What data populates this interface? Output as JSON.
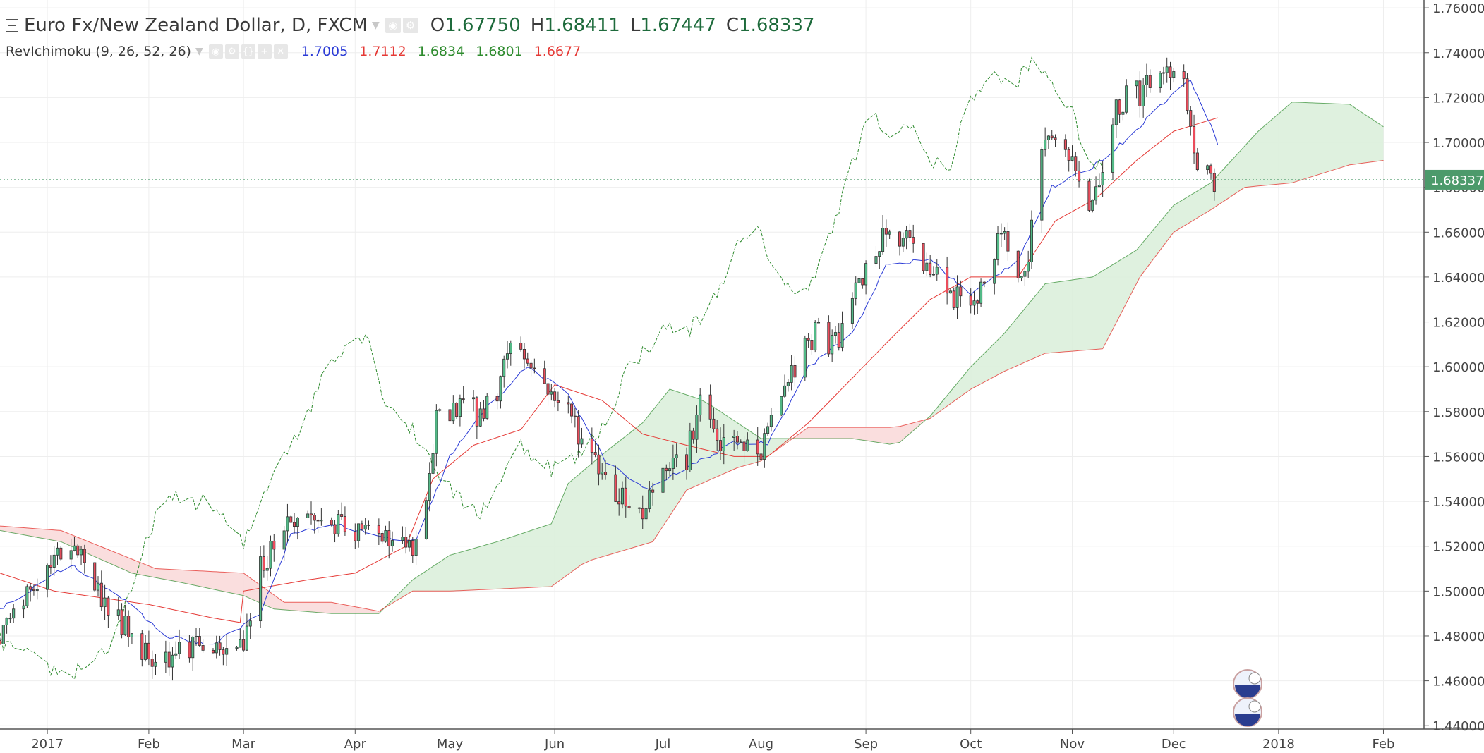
{
  "header": {
    "symbol_title": "Euro Fx/New Zealand Dollar, D, FXCM",
    "ohlc": [
      {
        "label": "O",
        "value": "1.67750"
      },
      {
        "label": "H",
        "value": "1.68411"
      },
      {
        "label": "L",
        "value": "1.67447"
      },
      {
        "label": "C",
        "value": "1.68337"
      }
    ]
  },
  "indicator": {
    "name": "RevIchimoku (9, 26, 52, 26)",
    "values": [
      {
        "value": "1.7005",
        "color": "#2b3bd6"
      },
      {
        "value": "1.7112",
        "color": "#e53935"
      },
      {
        "value": "1.6834",
        "color": "#2e8b2e"
      },
      {
        "value": "1.6801",
        "color": "#2e8b2e"
      },
      {
        "value": "1.6677",
        "color": "#e53935"
      }
    ]
  },
  "colors": {
    "up_candle": "#53b987",
    "down_candle": "#eb4d5c",
    "tenkan": "#2b3bd6",
    "kijun": "#e53935",
    "chikou": "#2e8b2e",
    "cloud_bull": "#d9eed9",
    "cloud_bear": "#f9d8d8",
    "last_price_bg": "#4c9a6b"
  },
  "chart_data": {
    "type": "candlestick",
    "y_ticks": [
      "1.76000",
      "1.74000",
      "1.72000",
      "1.70000",
      "1.68000",
      "1.66000",
      "1.64000",
      "1.62000",
      "1.60000",
      "1.58000",
      "1.56000",
      "1.54000",
      "1.52000",
      "1.50000",
      "1.48000",
      "1.46000",
      "1.44000"
    ],
    "ylim": [
      1.4385,
      1.7635
    ],
    "x_axis": {
      "start": "2016-12-19",
      "end": "2018-02-13",
      "ticks": [
        {
          "label": "2017",
          "date": "2017-01-02"
        },
        {
          "label": "Feb",
          "date": "2017-02-01"
        },
        {
          "label": "Mar",
          "date": "2017-03-01"
        },
        {
          "label": "Apr",
          "date": "2017-04-03"
        },
        {
          "label": "May",
          "date": "2017-05-01"
        },
        {
          "label": "Jun",
          "date": "2017-06-01"
        },
        {
          "label": "Jul",
          "date": "2017-07-03"
        },
        {
          "label": "Aug",
          "date": "2017-08-01"
        },
        {
          "label": "Sep",
          "date": "2017-09-01"
        },
        {
          "label": "Oct",
          "date": "2017-10-02"
        },
        {
          "label": "Nov",
          "date": "2017-11-01"
        },
        {
          "label": "Dec",
          "date": "2017-12-01"
        },
        {
          "label": "2018",
          "date": "2018-01-01"
        },
        {
          "label": "Feb",
          "date": "2018-02-01"
        }
      ]
    },
    "last_price": {
      "label": "1.68337",
      "value": 1.68337
    },
    "price_anchors": [
      [
        "2016-12-19",
        1.478
      ],
      [
        "2016-12-28",
        1.5
      ],
      [
        "2017-01-05",
        1.515
      ],
      [
        "2017-01-10",
        1.522
      ],
      [
        "2017-01-17",
        1.5
      ],
      [
        "2017-01-24",
        1.485
      ],
      [
        "2017-02-01",
        1.472
      ],
      [
        "2017-02-08",
        1.472
      ],
      [
        "2017-02-15",
        1.478
      ],
      [
        "2017-02-22",
        1.47
      ],
      [
        "2017-03-01",
        1.478
      ],
      [
        "2017-03-06",
        1.51
      ],
      [
        "2017-03-13",
        1.53
      ],
      [
        "2017-03-20",
        1.533
      ],
      [
        "2017-03-27",
        1.53
      ],
      [
        "2017-04-03",
        1.525
      ],
      [
        "2017-04-10",
        1.528
      ],
      [
        "2017-04-17",
        1.52
      ],
      [
        "2017-04-21",
        1.518
      ],
      [
        "2017-04-25",
        1.55
      ],
      [
        "2017-04-27",
        1.575
      ],
      [
        "2017-05-04",
        1.585
      ],
      [
        "2017-05-10",
        1.578
      ],
      [
        "2017-05-15",
        1.59
      ],
      [
        "2017-05-19",
        1.612
      ],
      [
        "2017-05-23",
        1.605
      ],
      [
        "2017-05-30",
        1.59
      ],
      [
        "2017-06-05",
        1.58
      ],
      [
        "2017-06-12",
        1.56
      ],
      [
        "2017-06-19",
        1.545
      ],
      [
        "2017-06-27",
        1.535
      ],
      [
        "2017-07-03",
        1.558
      ],
      [
        "2017-07-10",
        1.56
      ],
      [
        "2017-07-14",
        1.585
      ],
      [
        "2017-07-19",
        1.565
      ],
      [
        "2017-07-26",
        1.565
      ],
      [
        "2017-08-01",
        1.562
      ],
      [
        "2017-08-04",
        1.578
      ],
      [
        "2017-08-10",
        1.598
      ],
      [
        "2017-08-17",
        1.615
      ],
      [
        "2017-08-23",
        1.61
      ],
      [
        "2017-08-29",
        1.632
      ],
      [
        "2017-09-04",
        1.652
      ],
      [
        "2017-09-08",
        1.66
      ],
      [
        "2017-09-14",
        1.655
      ],
      [
        "2017-09-20",
        1.645
      ],
      [
        "2017-09-26",
        1.63
      ],
      [
        "2017-09-29",
        1.63
      ],
      [
        "2017-10-05",
        1.632
      ],
      [
        "2017-10-11",
        1.66
      ],
      [
        "2017-10-16",
        1.645
      ],
      [
        "2017-10-19",
        1.648
      ],
      [
        "2017-10-23",
        1.7
      ],
      [
        "2017-10-27",
        1.7
      ],
      [
        "2017-11-02",
        1.69
      ],
      [
        "2017-11-07",
        1.67
      ],
      [
        "2017-11-13",
        1.71
      ],
      [
        "2017-11-17",
        1.722
      ],
      [
        "2017-11-21",
        1.722
      ],
      [
        "2017-11-27",
        1.73
      ],
      [
        "2017-12-01",
        1.735
      ],
      [
        "2017-12-05",
        1.72
      ],
      [
        "2017-12-08",
        1.69
      ],
      [
        "2017-12-13",
        1.682
      ]
    ],
    "tenkan_anchors": [
      [
        "2016-12-19",
        1.492
      ],
      [
        "2017-01-09",
        1.512
      ],
      [
        "2017-01-23",
        1.498
      ],
      [
        "2017-02-06",
        1.48
      ],
      [
        "2017-02-20",
        1.476
      ],
      [
        "2017-03-06",
        1.49
      ],
      [
        "2017-03-15",
        1.525
      ],
      [
        "2017-03-28",
        1.53
      ],
      [
        "2017-04-10",
        1.524
      ],
      [
        "2017-04-21",
        1.522
      ],
      [
        "2017-05-01",
        1.56
      ],
      [
        "2017-05-12",
        1.582
      ],
      [
        "2017-05-24",
        1.6
      ],
      [
        "2017-06-05",
        1.588
      ],
      [
        "2017-06-16",
        1.558
      ],
      [
        "2017-06-28",
        1.545
      ],
      [
        "2017-07-10",
        1.555
      ],
      [
        "2017-07-24",
        1.566
      ],
      [
        "2017-08-03",
        1.566
      ],
      [
        "2017-08-15",
        1.6
      ],
      [
        "2017-08-28",
        1.615
      ],
      [
        "2017-09-07",
        1.645
      ],
      [
        "2017-09-20",
        1.648
      ],
      [
        "2017-10-02",
        1.632
      ],
      [
        "2017-10-16",
        1.648
      ],
      [
        "2017-10-26",
        1.68
      ],
      [
        "2017-11-06",
        1.688
      ],
      [
        "2017-11-16",
        1.7
      ],
      [
        "2017-11-28",
        1.718
      ],
      [
        "2017-12-06",
        1.728
      ],
      [
        "2017-12-14",
        1.7
      ]
    ],
    "kijun_anchors": [
      [
        "2016-12-19",
        1.508
      ],
      [
        "2017-01-04",
        1.5
      ],
      [
        "2017-02-01",
        1.494
      ],
      [
        "2017-02-20",
        1.488
      ],
      [
        "2017-02-28",
        1.486
      ],
      [
        "2017-03-01",
        1.5
      ],
      [
        "2017-03-20",
        1.505
      ],
      [
        "2017-04-03",
        1.508
      ],
      [
        "2017-04-18",
        1.52
      ],
      [
        "2017-04-26",
        1.55
      ],
      [
        "2017-05-08",
        1.565
      ],
      [
        "2017-05-22",
        1.572
      ],
      [
        "2017-06-01",
        1.592
      ],
      [
        "2017-06-15",
        1.585
      ],
      [
        "2017-06-27",
        1.57
      ],
      [
        "2017-07-10",
        1.565
      ],
      [
        "2017-07-24",
        1.56
      ],
      [
        "2017-08-03",
        1.56
      ],
      [
        "2017-08-15",
        1.575
      ],
      [
        "2017-08-28",
        1.595
      ],
      [
        "2017-09-08",
        1.612
      ],
      [
        "2017-09-20",
        1.63
      ],
      [
        "2017-10-02",
        1.64
      ],
      [
        "2017-10-16",
        1.64
      ],
      [
        "2017-10-27",
        1.665
      ],
      [
        "2017-11-08",
        1.675
      ],
      [
        "2017-11-20",
        1.692
      ],
      [
        "2017-12-01",
        1.705
      ],
      [
        "2017-12-14",
        1.711
      ]
    ],
    "chikou_anchors": [
      [
        "2016-12-19",
        1.478
      ],
      [
        "2016-12-28",
        1.47
      ],
      [
        "2017-01-08",
        1.462
      ],
      [
        "2017-01-20",
        1.475
      ],
      [
        "2017-01-26",
        1.495
      ],
      [
        "2017-02-03",
        1.535
      ],
      [
        "2017-02-10",
        1.542
      ],
      [
        "2017-02-20",
        1.538
      ],
      [
        "2017-03-01",
        1.52
      ],
      [
        "2017-03-10",
        1.555
      ],
      [
        "2017-03-20",
        1.578
      ],
      [
        "2017-03-25",
        1.6
      ],
      [
        "2017-03-31",
        1.61
      ],
      [
        "2017-04-06",
        1.615
      ],
      [
        "2017-04-12",
        1.585
      ],
      [
        "2017-04-18",
        1.575
      ],
      [
        "2017-04-23",
        1.565
      ],
      [
        "2017-04-29",
        1.55
      ],
      [
        "2017-05-04",
        1.54
      ],
      [
        "2017-05-10",
        1.535
      ],
      [
        "2017-05-16",
        1.55
      ],
      [
        "2017-05-22",
        1.565
      ],
      [
        "2017-05-31",
        1.555
      ],
      [
        "2017-06-08",
        1.56
      ],
      [
        "2017-06-16",
        1.575
      ],
      [
        "2017-06-22",
        1.598
      ],
      [
        "2017-06-29",
        1.61
      ],
      [
        "2017-07-05",
        1.618
      ],
      [
        "2017-07-10",
        1.615
      ],
      [
        "2017-07-18",
        1.63
      ],
      [
        "2017-07-24",
        1.652
      ],
      [
        "2017-07-31",
        1.66
      ],
      [
        "2017-08-05",
        1.645
      ],
      [
        "2017-08-11",
        1.63
      ],
      [
        "2017-08-16",
        1.64
      ],
      [
        "2017-08-22",
        1.66
      ],
      [
        "2017-08-28",
        1.69
      ],
      [
        "2017-09-03",
        1.715
      ],
      [
        "2017-09-08",
        1.7
      ],
      [
        "2017-09-14",
        1.71
      ],
      [
        "2017-09-20",
        1.69
      ],
      [
        "2017-09-26",
        1.69
      ],
      [
        "2017-10-02",
        1.72
      ],
      [
        "2017-10-08",
        1.73
      ],
      [
        "2017-10-14",
        1.725
      ],
      [
        "2017-10-20",
        1.735
      ],
      [
        "2017-10-26",
        1.728
      ],
      [
        "2017-11-01",
        1.712
      ],
      [
        "2017-11-07",
        1.69
      ],
      [
        "2017-11-10",
        1.688
      ]
    ],
    "span_a_anchors": [
      [
        "2016-12-19",
        1.527
      ],
      [
        "2017-01-06",
        1.522
      ],
      [
        "2017-01-27",
        1.508
      ],
      [
        "2017-02-10",
        1.504
      ],
      [
        "2017-03-01",
        1.498
      ],
      [
        "2017-03-10",
        1.492
      ],
      [
        "2017-03-27",
        1.49
      ],
      [
        "2017-04-10",
        1.49
      ],
      [
        "2017-04-20",
        1.505
      ],
      [
        "2017-05-01",
        1.516
      ],
      [
        "2017-05-15",
        1.522
      ],
      [
        "2017-05-31",
        1.53
      ],
      [
        "2017-06-05",
        1.548
      ],
      [
        "2017-06-16",
        1.562
      ],
      [
        "2017-06-27",
        1.575
      ],
      [
        "2017-07-05",
        1.59
      ],
      [
        "2017-07-15",
        1.585
      ],
      [
        "2017-07-25",
        1.575
      ],
      [
        "2017-08-01",
        1.568
      ],
      [
        "2017-08-14",
        1.568
      ],
      [
        "2017-08-28",
        1.568
      ],
      [
        "2017-09-10",
        1.565
      ],
      [
        "2017-09-20",
        1.578
      ],
      [
        "2017-10-02",
        1.6
      ],
      [
        "2017-10-12",
        1.615
      ],
      [
        "2017-10-24",
        1.637
      ],
      [
        "2017-11-07",
        1.64
      ],
      [
        "2017-11-20",
        1.652
      ],
      [
        "2017-12-01",
        1.672
      ],
      [
        "2017-12-12",
        1.682
      ],
      [
        "2017-12-26",
        1.705
      ],
      [
        "2018-01-05",
        1.718
      ],
      [
        "2018-01-22",
        1.717
      ],
      [
        "2018-02-01",
        1.707
      ]
    ],
    "span_b_anchors": [
      [
        "2016-12-19",
        1.529
      ],
      [
        "2017-01-06",
        1.527
      ],
      [
        "2017-02-03",
        1.51
      ],
      [
        "2017-03-01",
        1.508
      ],
      [
        "2017-03-13",
        1.495
      ],
      [
        "2017-03-27",
        1.495
      ],
      [
        "2017-04-10",
        1.491
      ],
      [
        "2017-04-20",
        1.5
      ],
      [
        "2017-05-01",
        1.5
      ],
      [
        "2017-05-31",
        1.502
      ],
      [
        "2017-06-10",
        1.513
      ],
      [
        "2017-06-30",
        1.522
      ],
      [
        "2017-07-10",
        1.545
      ],
      [
        "2017-07-25",
        1.555
      ],
      [
        "2017-08-01",
        1.558
      ],
      [
        "2017-08-15",
        1.573
      ],
      [
        "2017-09-01",
        1.573
      ],
      [
        "2017-09-10",
        1.573
      ],
      [
        "2017-09-20",
        1.577
      ],
      [
        "2017-10-02",
        1.59
      ],
      [
        "2017-10-12",
        1.598
      ],
      [
        "2017-10-24",
        1.606
      ],
      [
        "2017-11-10",
        1.608
      ],
      [
        "2017-11-21",
        1.64
      ],
      [
        "2017-12-01",
        1.66
      ],
      [
        "2017-12-12",
        1.67
      ],
      [
        "2017-12-22",
        1.68
      ],
      [
        "2018-01-05",
        1.682
      ],
      [
        "2018-01-22",
        1.69
      ],
      [
        "2018-02-01",
        1.692
      ]
    ]
  }
}
